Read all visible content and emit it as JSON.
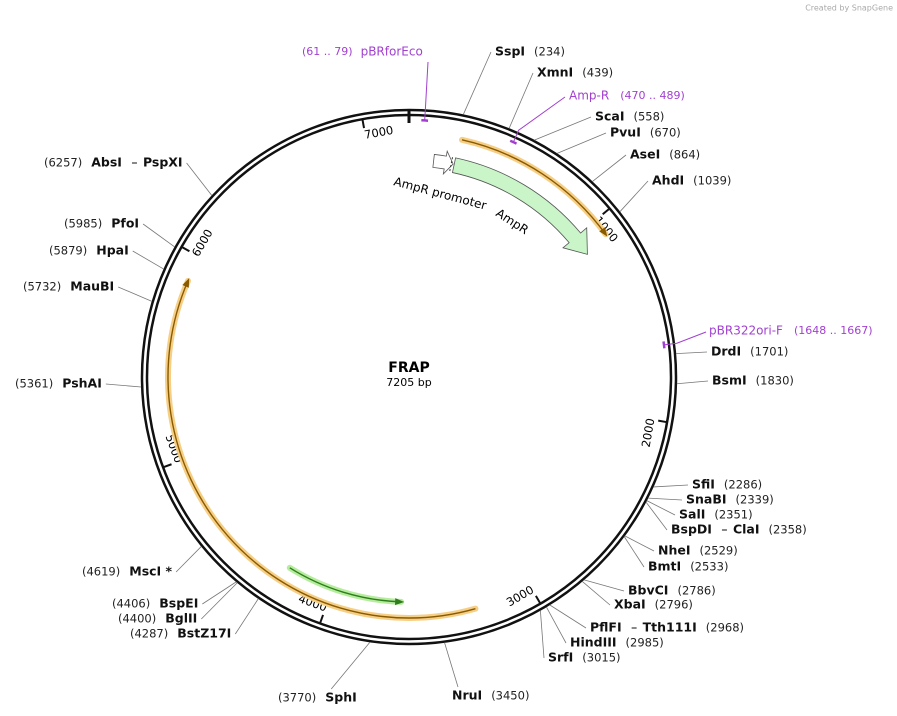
{
  "credit": "Created by SnapGene",
  "plasmid": {
    "name": "FRAP",
    "length": {
      "value": 7205,
      "label": "7205 bp"
    }
  },
  "ring_ticks": [
    1000,
    2000,
    3000,
    4000,
    5000,
    6000,
    7000
  ],
  "enzymes": [
    {
      "names": [
        "SspI"
      ],
      "position": {
        "value": 234,
        "label": "(234)"
      }
    },
    {
      "names": [
        "XmnI"
      ],
      "position": {
        "value": 439,
        "label": "(439)"
      }
    },
    {
      "names": [
        "ScaI"
      ],
      "position": {
        "value": 558,
        "label": "(558)"
      }
    },
    {
      "names": [
        "PvuI"
      ],
      "position": {
        "value": 670,
        "label": "(670)"
      }
    },
    {
      "names": [
        "AseI"
      ],
      "position": {
        "value": 864,
        "label": "(864)"
      }
    },
    {
      "names": [
        "AhdI"
      ],
      "position": {
        "value": 1039,
        "label": "(1039)"
      }
    },
    {
      "names": [
        "DrdI"
      ],
      "position": {
        "value": 1701,
        "label": "(1701)"
      }
    },
    {
      "names": [
        "BsmI"
      ],
      "position": {
        "value": 1830,
        "label": "(1830)"
      }
    },
    {
      "names": [
        "SfiI"
      ],
      "position": {
        "value": 2286,
        "label": "(2286)"
      }
    },
    {
      "names": [
        "SnaBI"
      ],
      "position": {
        "value": 2339,
        "label": "(2339)"
      }
    },
    {
      "names": [
        "SalI"
      ],
      "position": {
        "value": 2351,
        "label": "(2351)"
      }
    },
    {
      "names": [
        "BspDI",
        "ClaI"
      ],
      "position": {
        "value": 2358,
        "label": "(2358)"
      }
    },
    {
      "names": [
        "NheI"
      ],
      "position": {
        "value": 2529,
        "label": "(2529)"
      }
    },
    {
      "names": [
        "BmtI"
      ],
      "position": {
        "value": 2533,
        "label": "(2533)"
      }
    },
    {
      "names": [
        "BbvCI"
      ],
      "position": {
        "value": 2786,
        "label": "(2786)"
      }
    },
    {
      "names": [
        "XbaI"
      ],
      "position": {
        "value": 2796,
        "label": "(2796)"
      }
    },
    {
      "names": [
        "PflFI",
        "Tth111I"
      ],
      "position": {
        "value": 2968,
        "label": "(2968)"
      }
    },
    {
      "names": [
        "HindIII"
      ],
      "position": {
        "value": 2985,
        "label": "(2985)"
      }
    },
    {
      "names": [
        "SrfI"
      ],
      "position": {
        "value": 3015,
        "label": "(3015)"
      }
    },
    {
      "names": [
        "NruI"
      ],
      "position": {
        "value": 3450,
        "label": "(3450)"
      }
    },
    {
      "names": [
        "SphI"
      ],
      "position": {
        "value": 3770,
        "label": "(3770)"
      }
    },
    {
      "names": [
        "BstZ17I"
      ],
      "position": {
        "value": 4287,
        "label": "(4287)"
      }
    },
    {
      "names": [
        "BglII"
      ],
      "position": {
        "value": 4400,
        "label": "(4400)"
      }
    },
    {
      "names": [
        "BspEI"
      ],
      "position": {
        "value": 4406,
        "label": "(4406)"
      }
    },
    {
      "names": [
        "MscI *"
      ],
      "position": {
        "value": 4619,
        "label": "(4619)"
      }
    },
    {
      "names": [
        "PshAI"
      ],
      "position": {
        "value": 5361,
        "label": "(5361)"
      }
    },
    {
      "names": [
        "MauBI"
      ],
      "position": {
        "value": 5732,
        "label": "(5732)"
      }
    },
    {
      "names": [
        "HpaI"
      ],
      "position": {
        "value": 5879,
        "label": "(5879)"
      }
    },
    {
      "names": [
        "PfoI"
      ],
      "position": {
        "value": 5985,
        "label": "(5985)"
      }
    },
    {
      "names": [
        "AbsI",
        "PspXI"
      ],
      "position": {
        "value": 6257,
        "label": "(6257)"
      }
    }
  ],
  "primers": [
    {
      "name": "pBRforEco",
      "range": {
        "start": 61,
        "end": 79,
        "label": "(61 .. 79)"
      }
    },
    {
      "name": "Amp-R",
      "range": {
        "start": 470,
        "end": 489,
        "label": "(470 .. 489)"
      }
    },
    {
      "name": "pBR322ori-F",
      "range": {
        "start": 1648,
        "end": 1667,
        "label": "(1648 .. 1667)"
      }
    }
  ],
  "features": [
    {
      "name": "AmpR promoter"
    },
    {
      "name": "AmpR"
    }
  ]
}
